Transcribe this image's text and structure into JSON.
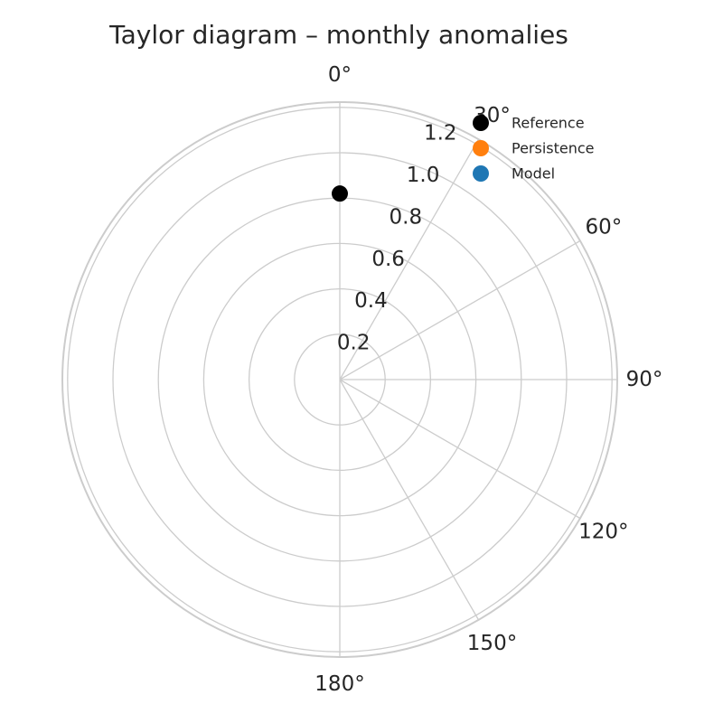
{
  "chart_data": {
    "type": "scatter",
    "projection": "polar",
    "title": "Taylor diagram – monthly anomalies",
    "theta_direction": "clockwise",
    "theta_zero": "top",
    "theta_ticks": [
      {
        "deg": 0,
        "label": "0°"
      },
      {
        "deg": 30,
        "label": "30°"
      },
      {
        "deg": 60,
        "label": "60°"
      },
      {
        "deg": 90,
        "label": "90°"
      },
      {
        "deg": 120,
        "label": "120°"
      },
      {
        "deg": 150,
        "label": "150°"
      },
      {
        "deg": 180,
        "label": "180°"
      }
    ],
    "r_ticks": [
      {
        "value": 0.2,
        "label": "0.2"
      },
      {
        "value": 0.4,
        "label": "0.4"
      },
      {
        "value": 0.6,
        "label": "0.6"
      },
      {
        "value": 0.8,
        "label": "0.8"
      },
      {
        "value": 1.0,
        "label": "1.0"
      },
      {
        "value": 1.2,
        "label": "1.2"
      }
    ],
    "rlim": [
      0,
      1.22
    ],
    "grid": true,
    "legend_position": "top-right",
    "series": [
      {
        "name": "Reference",
        "color": "#000000",
        "points": [
          {
            "theta_deg": 0,
            "r": 0.82
          }
        ]
      },
      {
        "name": "Persistence",
        "color": "#ff7f0e",
        "points": []
      },
      {
        "name": "Model",
        "color": "#1f77b4",
        "points": []
      }
    ]
  }
}
